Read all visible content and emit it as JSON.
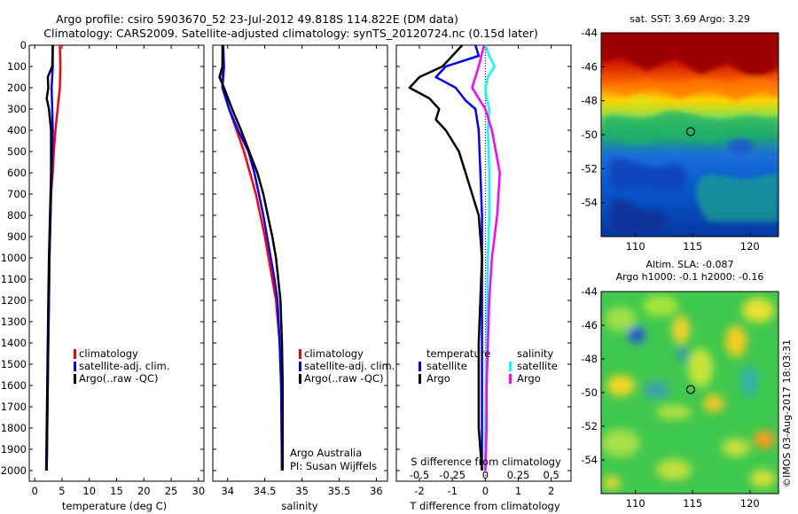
{
  "header": {
    "line1": "Argo profile: csiro 5903670_52 23-Jul-2012 49.818S 114.822E (DM data)",
    "line2": "Climatology: CARS2009. Satellite-adjusted climatology: synTS_20120724.nc (0.15d later)"
  },
  "stamp": "©IMOS 03-Aug-2017 18:03:31",
  "colors": {
    "climatology": "#ff0000",
    "satellite": "#0000ff",
    "argo": "#000000",
    "sat_salinity": "#00ffff",
    "argo_salinity": "#ff00ff"
  },
  "chart_data": [
    {
      "type": "line",
      "name": "temperature",
      "xlabel": "temperature (deg C)",
      "ylabel": "",
      "xlim": [
        -1,
        31
      ],
      "ylim": [
        2050,
        0
      ],
      "xticks": [
        "0",
        "5",
        "10",
        "15",
        "20",
        "25",
        "30"
      ],
      "yticks": [
        "0",
        "100",
        "200",
        "300",
        "400",
        "500",
        "600",
        "700",
        "800",
        "900",
        "1000",
        "1100",
        "1200",
        "1300",
        "1400",
        "1500",
        "1600",
        "1700",
        "1800",
        "1900",
        "2000"
      ],
      "legend": [
        "climatology",
        "satellite-adj. clim.",
        "Argo(..raw -QC)"
      ],
      "legend_position": "lower-middle",
      "series": [
        {
          "name": "climatology",
          "color": "#ff0000",
          "points": [
            [
              4.6,
              0
            ],
            [
              4.7,
              100
            ],
            [
              4.6,
              200
            ],
            [
              4.2,
              300
            ],
            [
              3.8,
              400
            ],
            [
              3.5,
              500
            ],
            [
              3.3,
              600
            ],
            [
              3.0,
              700
            ],
            [
              2.9,
              800
            ],
            [
              2.8,
              900
            ],
            [
              2.7,
              1000
            ],
            [
              2.6,
              1200
            ],
            [
              2.5,
              1400
            ],
            [
              2.4,
              1600
            ],
            [
              2.3,
              1800
            ],
            [
              2.2,
              2000
            ]
          ]
        },
        {
          "name": "satellite-adj. clim.",
          "color": "#0000ff",
          "points": [
            [
              3.3,
              0
            ],
            [
              3.3,
              100
            ],
            [
              3.1,
              200
            ],
            [
              3.2,
              300
            ],
            [
              3.3,
              400
            ],
            [
              3.2,
              500
            ],
            [
              3.1,
              600
            ],
            [
              3.0,
              700
            ],
            [
              2.9,
              800
            ],
            [
              2.8,
              900
            ],
            [
              2.7,
              1000
            ],
            [
              2.6,
              1200
            ],
            [
              2.5,
              1400
            ],
            [
              2.4,
              1600
            ],
            [
              2.3,
              1800
            ],
            [
              2.2,
              2000
            ]
          ]
        },
        {
          "name": "Argo(..raw -QC)",
          "color": "#000000",
          "points": [
            [
              3.3,
              0
            ],
            [
              3.2,
              100
            ],
            [
              2.4,
              150
            ],
            [
              2.5,
              200
            ],
            [
              2.2,
              250
            ],
            [
              2.6,
              300
            ],
            [
              3.0,
              400
            ],
            [
              3.0,
              500
            ],
            [
              3.0,
              600
            ],
            [
              2.9,
              700
            ],
            [
              2.8,
              800
            ],
            [
              2.7,
              900
            ],
            [
              2.6,
              1000
            ],
            [
              2.5,
              1200
            ],
            [
              2.4,
              1400
            ],
            [
              2.3,
              1600
            ],
            [
              2.2,
              1800
            ],
            [
              2.1,
              2000
            ]
          ]
        }
      ]
    },
    {
      "type": "line",
      "name": "salinity",
      "xlabel": "salinity",
      "xlim": [
        33.8,
        36.15
      ],
      "ylim": [
        2050,
        0
      ],
      "xticks": [
        "34",
        "34.5",
        "35",
        "35.5",
        "36"
      ],
      "legend": [
        "climatology",
        "satellite-adj. clim.",
        "Argo(..raw -QC)"
      ],
      "legend_position": "lower-middle",
      "annotations": [
        "Argo Australia",
        "PI: Susan Wijffels"
      ],
      "series": [
        {
          "name": "climatology",
          "color": "#ff0000",
          "points": [
            [
              33.94,
              0
            ],
            [
              33.93,
              100
            ],
            [
              33.93,
              200
            ],
            [
              34.02,
              300
            ],
            [
              34.12,
              400
            ],
            [
              34.22,
              500
            ],
            [
              34.3,
              600
            ],
            [
              34.38,
              700
            ],
            [
              34.44,
              800
            ],
            [
              34.5,
              900
            ],
            [
              34.55,
              1000
            ],
            [
              34.6,
              1100
            ],
            [
              34.65,
              1200
            ],
            [
              34.7,
              1400
            ],
            [
              34.72,
              1600
            ],
            [
              34.73,
              2000
            ]
          ]
        },
        {
          "name": "satellite-adj. clim.",
          "color": "#0000ff",
          "points": [
            [
              33.94,
              0
            ],
            [
              33.95,
              100
            ],
            [
              33.93,
              200
            ],
            [
              34.02,
              300
            ],
            [
              34.14,
              400
            ],
            [
              34.28,
              500
            ],
            [
              34.36,
              600
            ],
            [
              34.42,
              700
            ],
            [
              34.48,
              800
            ],
            [
              34.53,
              900
            ],
            [
              34.58,
              1000
            ],
            [
              34.63,
              1100
            ],
            [
              34.67,
              1200
            ],
            [
              34.7,
              1400
            ],
            [
              34.72,
              1600
            ],
            [
              34.73,
              2000
            ]
          ]
        },
        {
          "name": "Argo(..raw -QC)",
          "color": "#000000",
          "points": [
            [
              33.93,
              0
            ],
            [
              33.93,
              100
            ],
            [
              33.89,
              150
            ],
            [
              33.95,
              200
            ],
            [
              34.06,
              300
            ],
            [
              34.18,
              400
            ],
            [
              34.29,
              500
            ],
            [
              34.4,
              600
            ],
            [
              34.48,
              700
            ],
            [
              34.54,
              800
            ],
            [
              34.6,
              900
            ],
            [
              34.65,
              1000
            ],
            [
              34.68,
              1100
            ],
            [
              34.71,
              1200
            ],
            [
              34.73,
              1400
            ],
            [
              34.74,
              1600
            ],
            [
              34.74,
              2000
            ]
          ]
        }
      ]
    },
    {
      "type": "line",
      "name": "difference from climatology",
      "xlabel": "T difference from climatology",
      "xlabel_top": "S difference from climatology",
      "xlim": [
        -2.7,
        2.6
      ],
      "ylim": [
        2050,
        0
      ],
      "xticks": [
        "-2",
        "-1",
        "0",
        "1",
        "2"
      ],
      "xticks_s": [
        "-0.5",
        "-0.25",
        "0",
        "0.25",
        "0.5"
      ],
      "legend_titles": [
        "temperature",
        "salinity"
      ],
      "legend": [
        "satellite",
        "Argo",
        "satellite",
        "Argo"
      ],
      "series": [
        {
          "name": "satellite",
          "quantity": "temperature",
          "color": "#0000ff",
          "points": [
            [
              -0.3,
              0
            ],
            [
              -0.2,
              50
            ],
            [
              -1.2,
              100
            ],
            [
              -1.5,
              150
            ],
            [
              -0.9,
              200
            ],
            [
              -0.6,
              260
            ],
            [
              -0.3,
              300
            ],
            [
              -0.2,
              400
            ],
            [
              -0.15,
              600
            ],
            [
              -0.1,
              800
            ],
            [
              -0.1,
              1000
            ],
            [
              -0.1,
              1400
            ],
            [
              -0.1,
              1800
            ],
            [
              -0.1,
              2000
            ]
          ]
        },
        {
          "name": "Argo",
          "quantity": "temperature",
          "color": "#000000",
          "points": [
            [
              -0.7,
              0
            ],
            [
              -1.0,
              50
            ],
            [
              -1.3,
              100
            ],
            [
              -2.0,
              150
            ],
            [
              -2.3,
              200
            ],
            [
              -1.7,
              250
            ],
            [
              -1.4,
              300
            ],
            [
              -1.5,
              350
            ],
            [
              -1.2,
              400
            ],
            [
              -0.8,
              500
            ],
            [
              -0.6,
              600
            ],
            [
              -0.4,
              700
            ],
            [
              -0.2,
              800
            ],
            [
              -0.1,
              1000
            ],
            [
              -0.2,
              1400
            ],
            [
              -0.2,
              1800
            ],
            [
              -0.1,
              2000
            ]
          ]
        },
        {
          "name": "satellite",
          "quantity": "salinity",
          "color": "#00ffff",
          "points": [
            [
              0.0,
              0
            ],
            [
              0.03,
              50
            ],
            [
              0.07,
              100
            ],
            [
              0.02,
              150
            ],
            [
              0.0,
              200
            ],
            [
              0.01,
              250
            ],
            [
              0.03,
              300
            ],
            [
              0.02,
              400
            ],
            [
              0.03,
              600
            ],
            [
              0.03,
              800
            ],
            [
              0.02,
              1000
            ],
            [
              0.01,
              1400
            ],
            [
              0.0,
              1800
            ],
            [
              0.0,
              2000
            ]
          ]
        },
        {
          "name": "Argo",
          "quantity": "salinity",
          "color": "#ff00ff",
          "points": [
            [
              -0.01,
              0
            ],
            [
              -0.05,
              100
            ],
            [
              -0.1,
              200
            ],
            [
              0.0,
              300
            ],
            [
              0.05,
              400
            ],
            [
              0.08,
              500
            ],
            [
              0.11,
              600
            ],
            [
              0.1,
              700
            ],
            [
              0.09,
              800
            ],
            [
              0.07,
              900
            ],
            [
              0.05,
              1000
            ],
            [
              0.03,
              1200
            ],
            [
              0.02,
              1400
            ],
            [
              0.01,
              1600
            ],
            [
              0.01,
              1800
            ],
            [
              0.0,
              2000
            ]
          ]
        }
      ]
    },
    {
      "type": "heatmap",
      "name": "sat-sst-map",
      "title": "sat. SST: 3.69  Argo: 3.29",
      "xlim": [
        107,
        122.5
      ],
      "ylim": [
        -56,
        -44
      ],
      "xticks": [
        "110",
        "115",
        "120"
      ],
      "yticks": [
        "-44",
        "-46",
        "-48",
        "-50",
        "-52",
        "-54"
      ],
      "profile_location": [
        114.822,
        -49.818
      ],
      "colormap": "jet"
    },
    {
      "type": "heatmap",
      "name": "sla-map",
      "title": "Altim. SLA: -0.087",
      "subtitle": "Argo h1000: -0.1  h2000: -0.16",
      "xlim": [
        107,
        122.5
      ],
      "ylim": [
        -56,
        -44
      ],
      "xticks": [
        "110",
        "115",
        "120"
      ],
      "yticks": [
        "-44",
        "-46",
        "-48",
        "-50",
        "-52",
        "-54"
      ],
      "profile_location": [
        114.822,
        -49.818
      ],
      "colormap": "jet"
    }
  ]
}
